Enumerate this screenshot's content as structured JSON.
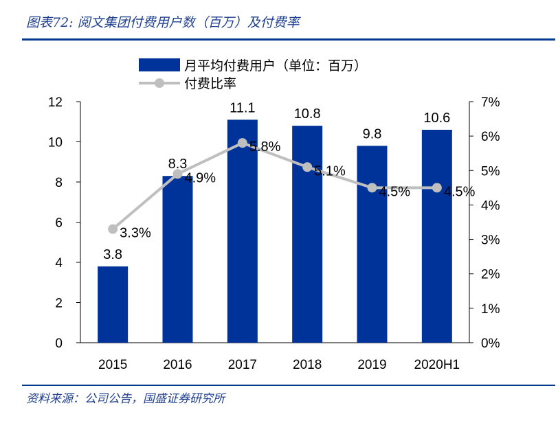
{
  "chart_data": {
    "type": "bar+line",
    "title": "图表72: 阅文集团付费用户数（百万）及付费率",
    "categories": [
      "2015",
      "2016",
      "2017",
      "2018",
      "2019",
      "2020H1"
    ],
    "series": [
      {
        "name": "月平均付费用户（单位：百万）",
        "type": "bar",
        "axis": "left",
        "values": [
          3.8,
          8.3,
          11.1,
          10.8,
          9.8,
          10.6
        ],
        "labels": [
          "3.8",
          "8.3",
          "11.1",
          "10.8",
          "9.8",
          "10.6"
        ]
      },
      {
        "name": "付费比率",
        "type": "line",
        "axis": "right",
        "values": [
          3.3,
          4.9,
          5.8,
          5.1,
          4.5,
          4.5
        ],
        "labels": [
          "3.3%",
          "4.9%",
          "5.8%",
          "5.1%",
          "4.5%",
          "4.5%"
        ]
      }
    ],
    "y_left": {
      "min": 0,
      "max": 12,
      "ticks": [
        "0",
        "2",
        "4",
        "6",
        "8",
        "10",
        "12"
      ]
    },
    "y_right": {
      "min": 0,
      "max": 7,
      "ticks": [
        "0%",
        "1%",
        "2%",
        "3%",
        "4%",
        "5%",
        "6%",
        "7%"
      ]
    },
    "legend_position": "top",
    "grid": false,
    "colors": {
      "bar": "#003399",
      "line": "#bfbfbf",
      "header_rule": "#003a8c"
    }
  },
  "source": "资料来源：公司公告，国盛证券研究所"
}
